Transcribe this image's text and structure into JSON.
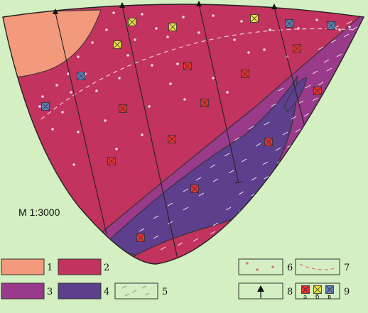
{
  "scale": "М 1:3000",
  "colors": {
    "unit1": "#f29a7b",
    "unit2": "#c2335f",
    "unit3": "#9a3a8a",
    "unit4": "#5e3f8e",
    "background": "#d4efc1",
    "marker_a": "#e8302e",
    "marker_b": "#e8e040",
    "marker_v": "#5f7fb8"
  },
  "legend": [
    {
      "label": "1",
      "kind": "unit1"
    },
    {
      "label": "2",
      "kind": "unit2"
    },
    {
      "label": "3",
      "kind": "unit3"
    },
    {
      "label": "4",
      "kind": "unit4"
    },
    {
      "label": "5",
      "kind": "dashes-fill"
    },
    {
      "label": "6",
      "kind": "dots"
    },
    {
      "label": "7",
      "kind": "dashed-line"
    },
    {
      "label": "8",
      "kind": "drill-marker"
    },
    {
      "label": "9",
      "kind": "sample-markers",
      "sublabels": [
        "а",
        "б",
        "в"
      ]
    }
  ]
}
